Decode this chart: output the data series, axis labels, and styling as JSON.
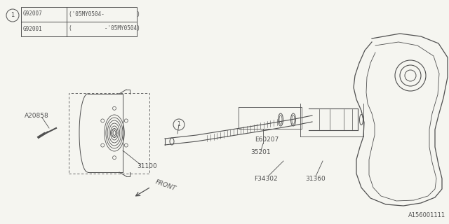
{
  "bg_color": "#f5f5f0",
  "line_color": "#505050",
  "fig_width": 6.4,
  "fig_height": 3.2,
  "legend_items": [
    {
      "code": "G92001",
      "desc": "(          -'05MY0504)"
    },
    {
      "code": "G92007",
      "desc": "('05MY0504-          )"
    }
  ],
  "diagram_id": "A156001111"
}
